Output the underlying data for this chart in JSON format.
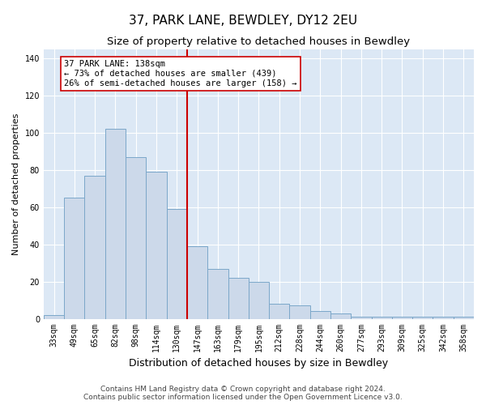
{
  "title": "37, PARK LANE, BEWDLEY, DY12 2EU",
  "subtitle": "Size of property relative to detached houses in Bewdley",
  "xlabel": "Distribution of detached houses by size in Bewdley",
  "ylabel": "Number of detached properties",
  "categories": [
    "33sqm",
    "49sqm",
    "65sqm",
    "82sqm",
    "98sqm",
    "114sqm",
    "130sqm",
    "147sqm",
    "163sqm",
    "179sqm",
    "195sqm",
    "212sqm",
    "228sqm",
    "244sqm",
    "260sqm",
    "277sqm",
    "293sqm",
    "309sqm",
    "325sqm",
    "342sqm",
    "358sqm"
  ],
  "values": [
    2,
    65,
    77,
    102,
    87,
    79,
    59,
    39,
    27,
    22,
    20,
    8,
    7,
    4,
    3,
    1,
    1,
    1,
    1,
    1,
    1
  ],
  "bar_color": "#ccd9ea",
  "bar_edge_color": "#7ba7c9",
  "bar_width": 1.0,
  "vline_x": 6.5,
  "vline_color": "#cc0000",
  "annotation_text": "37 PARK LANE: 138sqm\n← 73% of detached houses are smaller (439)\n26% of semi-detached houses are larger (158) →",
  "annotation_box_color": "#ffffff",
  "annotation_box_edge_color": "#cc0000",
  "ylim": [
    0,
    145
  ],
  "yticks": [
    0,
    20,
    40,
    60,
    80,
    100,
    120,
    140
  ],
  "background_color": "#dce8f5",
  "footnote": "Contains HM Land Registry data © Crown copyright and database right 2024.\nContains public sector information licensed under the Open Government Licence v3.0.",
  "title_fontsize": 11,
  "subtitle_fontsize": 9.5,
  "xlabel_fontsize": 9,
  "ylabel_fontsize": 8,
  "tick_fontsize": 7,
  "annotation_fontsize": 7.5,
  "footnote_fontsize": 6.5
}
